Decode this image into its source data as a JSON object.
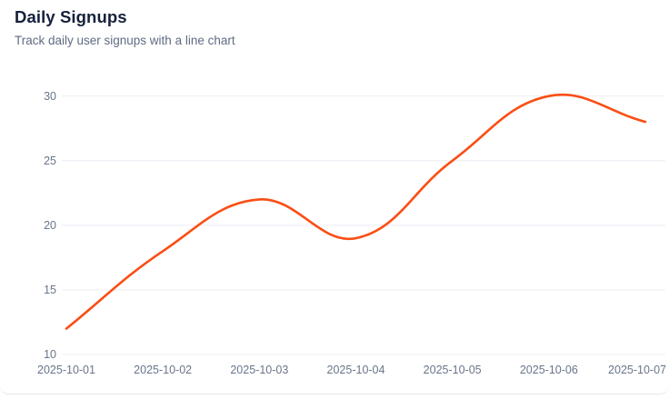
{
  "header": {
    "title": "Daily Signups",
    "subtitle": "Track daily user signups with a line chart"
  },
  "colors": {
    "line": "#fa4e14",
    "title_text": "#15213c",
    "subtitle_text": "#5f6b83",
    "tick_text": "#69758a",
    "gridline": "#eef1f7",
    "card_border": "#e3e7ee",
    "card_background": "#ffffff"
  },
  "chart_data": {
    "type": "line",
    "title": "Daily Signups",
    "x": [
      "2025-10-01",
      "2025-10-02",
      "2025-10-03",
      "2025-10-04",
      "2025-10-05",
      "2025-10-06",
      "2025-10-07"
    ],
    "values": [
      12,
      18,
      22,
      19,
      25,
      30,
      28
    ],
    "xlabel": "",
    "ylabel": "",
    "ylim": [
      10,
      30
    ],
    "yticks": [
      10,
      15,
      20,
      25,
      30
    ],
    "grid": "horizontal-only",
    "legend": "none",
    "smooth": true,
    "line_color": "#fa4e14"
  }
}
